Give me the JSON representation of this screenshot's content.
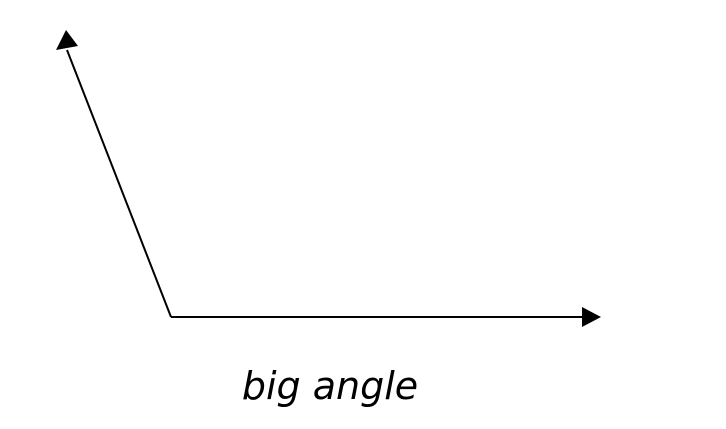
{
  "diagram": {
    "caption": "big angle",
    "stroke_color": "#000000",
    "background_color": "#ffffff"
  }
}
